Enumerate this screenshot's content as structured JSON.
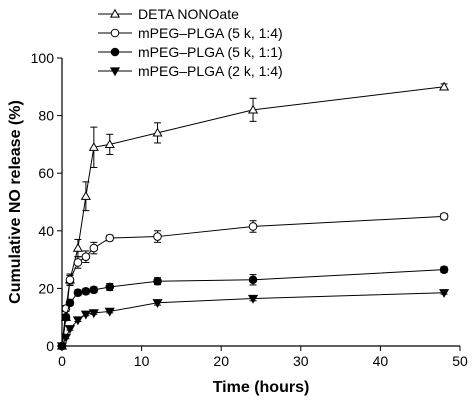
{
  "chart_data": {
    "type": "line",
    "xlabel": "Time (hours)",
    "ylabel": "Cumulative NO release (%)",
    "xlim": [
      0,
      50
    ],
    "ylim": [
      0,
      100
    ],
    "xticks": [
      0,
      10,
      20,
      30,
      40,
      50
    ],
    "yticks": [
      0,
      20,
      40,
      60,
      80,
      100
    ],
    "grid": false,
    "legend_position": "top-left",
    "series": [
      {
        "name": "DETA NONOate",
        "marker": "triangle-up-open",
        "x": [
          0,
          0.5,
          1,
          2,
          3,
          4,
          6,
          12,
          24,
          48
        ],
        "y": [
          0,
          10,
          23,
          34,
          52,
          69,
          70,
          74,
          82,
          90
        ],
        "err": [
          0.5,
          1,
          2,
          3,
          5,
          7,
          3.5,
          3.5,
          4,
          1
        ]
      },
      {
        "name": "mPEG–PLGA (5 k, 1:4)",
        "marker": "circle-open",
        "x": [
          0,
          0.5,
          1,
          2,
          3,
          4,
          6,
          12,
          24,
          48
        ],
        "y": [
          0,
          13,
          23,
          29,
          31,
          34,
          37.5,
          38,
          41.5,
          45
        ],
        "err": [
          0.5,
          1,
          1.5,
          2,
          2,
          2,
          1,
          2,
          2,
          1
        ]
      },
      {
        "name": "mPEG–PLGA (5 k, 1:1)",
        "marker": "circle-filled",
        "x": [
          0,
          0.5,
          1,
          2,
          3,
          4,
          6,
          12,
          24,
          48
        ],
        "y": [
          0,
          10,
          15,
          18.5,
          19,
          19.5,
          20.5,
          22.5,
          23,
          26.5
        ],
        "err": [
          0.5,
          1,
          1,
          1,
          1,
          1,
          1.2,
          1.2,
          1.8,
          1
        ]
      },
      {
        "name": "mPEG–PLGA (2 k, 1:4)",
        "marker": "triangle-down-filled",
        "x": [
          0,
          0.5,
          1,
          2,
          3,
          4,
          6,
          12,
          24,
          48
        ],
        "y": [
          0,
          3,
          6,
          9,
          11,
          11.5,
          12,
          15,
          16.5,
          18.5
        ],
        "err": [
          0.3,
          0.5,
          0.5,
          0.5,
          0.5,
          0.5,
          0.5,
          0.8,
          0.8,
          0.5
        ]
      }
    ]
  }
}
